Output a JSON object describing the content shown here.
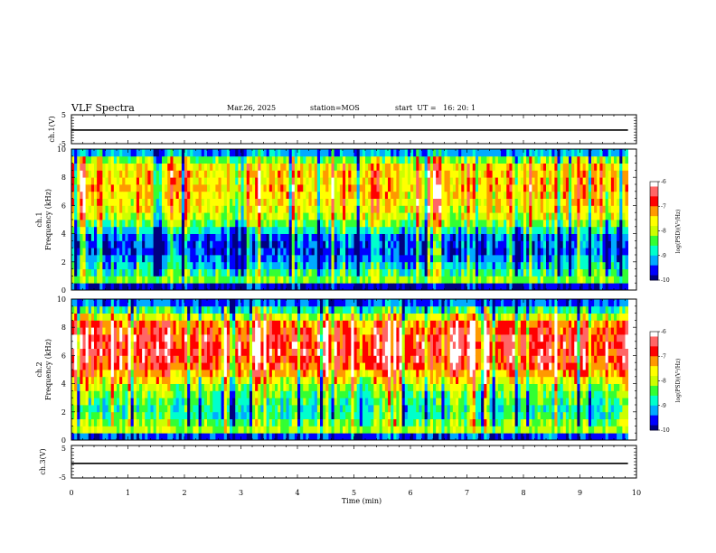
{
  "header": {
    "title": "VLF Spectra",
    "date": "Mar.26, 2025",
    "station": "station=MOS",
    "start": "start  UT =   16: 20: 1"
  },
  "chart_data": [
    {
      "type": "line",
      "panel": "ch1-waveform",
      "ylabel": "ch.1(V)",
      "xlim": [
        0,
        10
      ],
      "ylim": [
        -5,
        5
      ],
      "yticks": [
        "5",
        "-5"
      ],
      "x": [
        0,
        9.85
      ],
      "values": [
        -0.3,
        -0.3
      ]
    },
    {
      "type": "heatmap",
      "panel": "ch1-spectrogram",
      "ylabel_channel": "ch.1",
      "ylabel": "Frequency (kHz)",
      "ylim": [
        0,
        10
      ],
      "yticks": [
        "0",
        "2",
        "4",
        "6",
        "8",
        "10"
      ],
      "xlim": [
        0,
        9.85
      ],
      "x_step_min": 0.05,
      "freq_step_khz": 0.5,
      "zrange": [
        -10,
        -6
      ],
      "colorbar_label": "log(PSD)(V²/Hz)",
      "colorbar_ticks": [
        "-6",
        "-7",
        "-8",
        "-9",
        "-10"
      ],
      "freq_profile": [
        -9.8,
        -8.2,
        -8.6,
        -9.0,
        -9.3,
        -9.5,
        -9.5,
        -9.4,
        -8.9,
        -8.3,
        -7.9,
        -7.7,
        -7.6,
        -7.5,
        -7.4,
        -7.5,
        -7.5,
        -7.6,
        -8.2,
        -9.2
      ]
    },
    {
      "type": "heatmap",
      "panel": "ch2-spectrogram",
      "ylabel_channel": "ch.2",
      "ylabel": "Frequency (kHz)",
      "ylim": [
        0,
        10
      ],
      "yticks": [
        "0",
        "2",
        "4",
        "6",
        "8",
        "10"
      ],
      "xlim": [
        0,
        9.85
      ],
      "x_step_min": 0.05,
      "freq_step_khz": 0.5,
      "zrange": [
        -10,
        -6
      ],
      "colorbar_label": "log(PSD)(V²/Hz)",
      "colorbar_ticks": [
        "-6",
        "-7",
        "-8",
        "-9",
        "-10"
      ],
      "freq_profile": [
        -9.5,
        -8.0,
        -8.2,
        -8.6,
        -8.7,
        -8.5,
        -8.3,
        -8.0,
        -7.6,
        -7.2,
        -6.8,
        -6.7,
        -6.6,
        -6.6,
        -6.6,
        -6.8,
        -7.0,
        -7.8,
        -8.6,
        -9.4
      ]
    },
    {
      "type": "line",
      "panel": "ch3-waveform",
      "ylabel": "ch.3(V)",
      "xlim": [
        0,
        10
      ],
      "ylim": [
        -5,
        5
      ],
      "yticks": [
        "5",
        "-5"
      ],
      "x": [
        0,
        9.85
      ],
      "values": [
        -0.5,
        -0.5
      ]
    }
  ],
  "xaxis": {
    "label": "Time (min)",
    "ticks": [
      "0",
      "1",
      "2",
      "3",
      "4",
      "5",
      "6",
      "7",
      "8",
      "9",
      "10"
    ]
  },
  "colormap": [
    "#000080",
    "#0000ff",
    "#00aaff",
    "#00ffcc",
    "#33ff33",
    "#ccff00",
    "#ffff00",
    "#ff9900",
    "#ff0000",
    "#ff6666",
    "#ffffff"
  ]
}
